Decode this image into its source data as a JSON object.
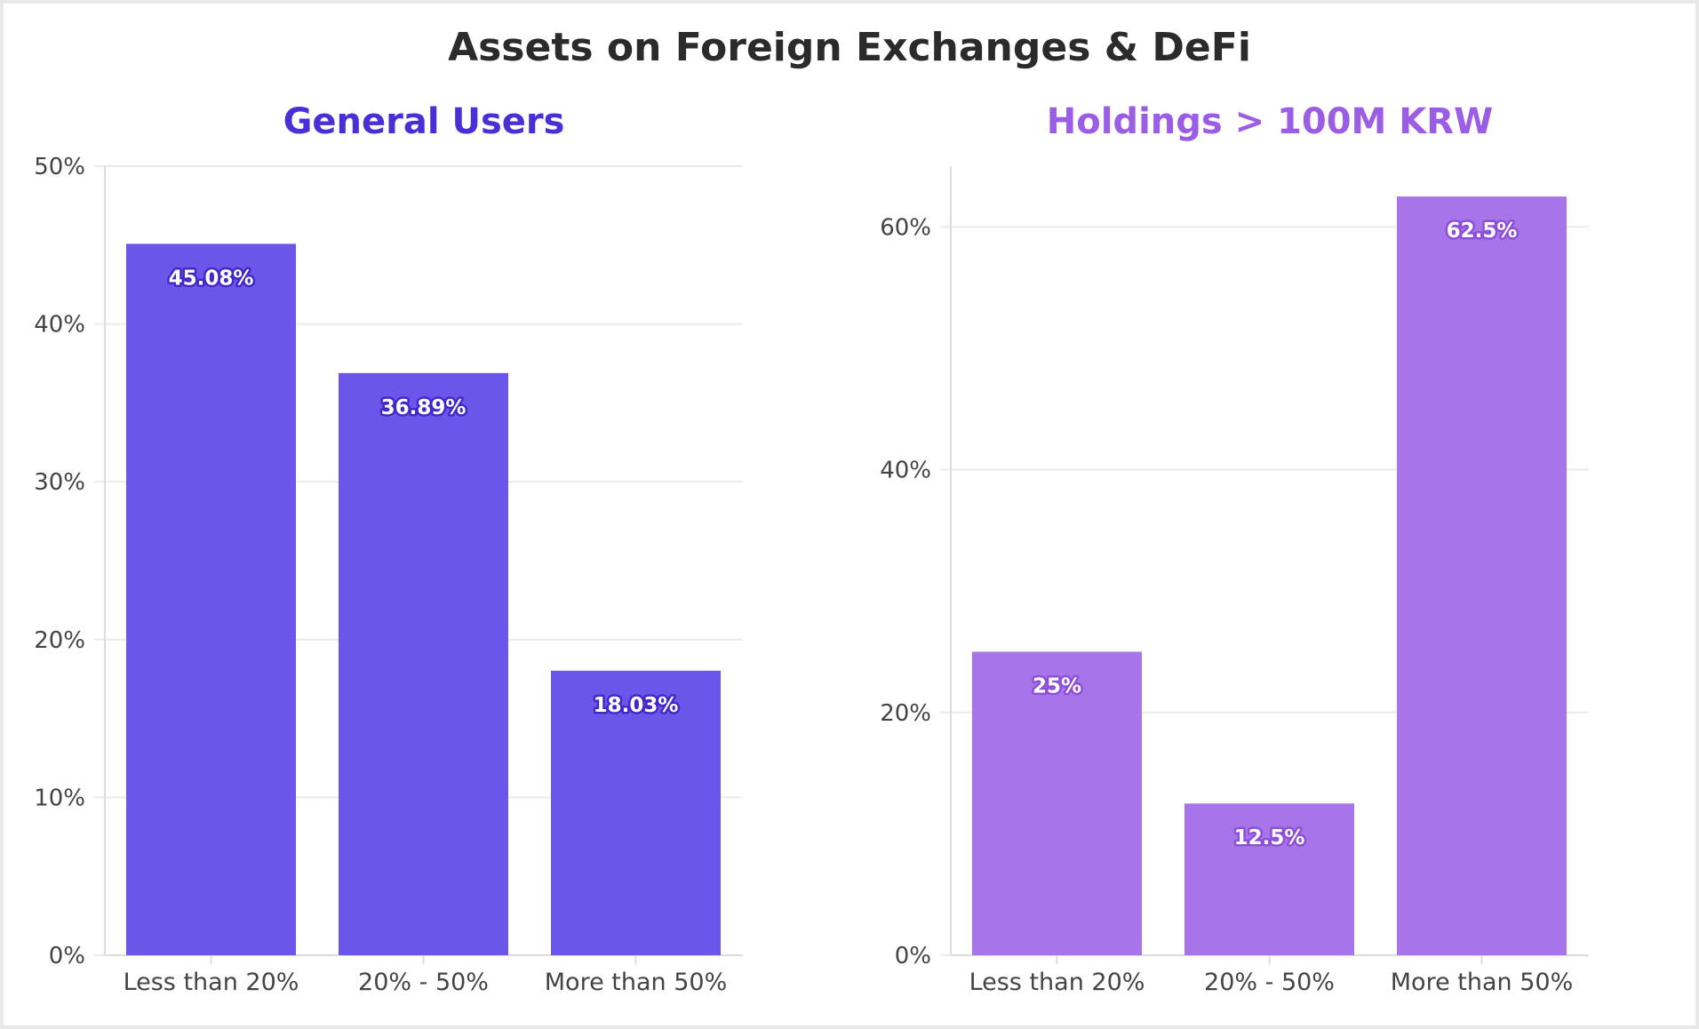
{
  "title": "Assets on Foreign Exchanges & DeFi",
  "colors": {
    "general_bar": "#6a57ea",
    "general_title": "#4b2fd6",
    "general_label_outline": "#4327c9",
    "holdings_bar": "#a874ea",
    "holdings_title": "#9b5de5",
    "holdings_label_outline": "#8e4fd8",
    "grid": "#ebebeb",
    "axis": "#dddddd"
  },
  "chart_data": [
    {
      "type": "bar",
      "title": "General Users",
      "categories": [
        "Less than 20%",
        "20% - 50%",
        "More than 50%"
      ],
      "values": [
        45.08,
        36.89,
        18.03
      ],
      "value_labels": [
        "45.08%",
        "36.89%",
        "18.03%"
      ],
      "ylim": [
        0,
        50
      ],
      "yticks": [
        0,
        10,
        20,
        30,
        40,
        50
      ],
      "ytick_labels": [
        "0%",
        "10%",
        "20%",
        "30%",
        "40%",
        "50%"
      ],
      "xlabel": "",
      "ylabel": "",
      "grid": true
    },
    {
      "type": "bar",
      "title": "Holdings > 100M KRW",
      "categories": [
        "Less than 20%",
        "20% - 50%",
        "More than 50%"
      ],
      "values": [
        25,
        12.5,
        62.5
      ],
      "value_labels": [
        "25%",
        "12.5%",
        "62.5%"
      ],
      "ylim": [
        0,
        65
      ],
      "yticks": [
        0,
        20,
        40,
        60
      ],
      "ytick_labels": [
        "0%",
        "20%",
        "40%",
        "60%"
      ],
      "xlabel": "",
      "ylabel": "",
      "grid": true
    }
  ]
}
